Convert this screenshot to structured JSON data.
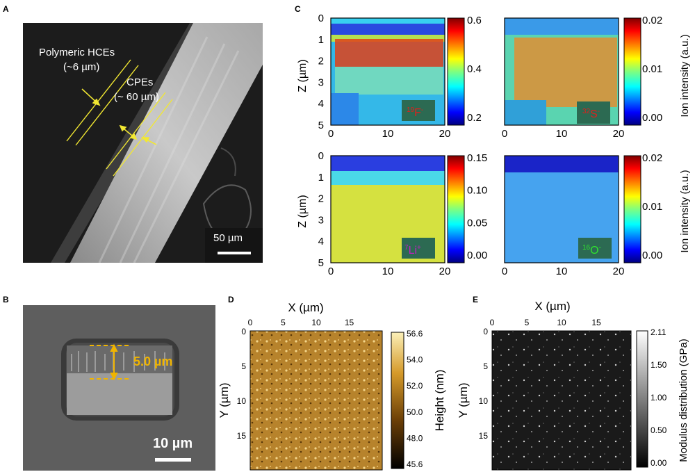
{
  "panels": {
    "a": {
      "label": "A",
      "hce_label_1": "Polymeric HCEs",
      "hce_label_2": "(~6 µm)",
      "cpe_label_1": "CPEs",
      "cpe_label_2": "(~ 60 µm)",
      "scale_bar": "50 µm"
    },
    "b": {
      "label": "B",
      "thickness": "5.0 µm",
      "scale_bar": "10 µm"
    },
    "c": {
      "label": "C",
      "ylabel": "Z (µm)",
      "colorbar_label": "Ion intensity (a.u.)",
      "x_ticks": [
        "0",
        "10",
        "20"
      ],
      "y_ticks": [
        "0",
        "1",
        "2",
        "3",
        "4",
        "5"
      ],
      "maps": [
        {
          "ion_mass": "19",
          "ion": "F",
          "charge": "-",
          "cbar_ticks": [
            "0.6",
            "0.4",
            "0.2"
          ]
        },
        {
          "ion_mass": "32",
          "ion": "S",
          "charge": "-",
          "cbar_ticks": [
            "0.02",
            "0.01",
            "0.00"
          ]
        },
        {
          "ion_mass": "7",
          "ion": "Li",
          "charge": "+",
          "cbar_ticks": [
            "0.15",
            "0.10",
            "0.05",
            "0.00"
          ]
        },
        {
          "ion_mass": "16",
          "ion": "O",
          "charge": "-",
          "cbar_ticks": [
            "0.02",
            "0.01",
            "0.00"
          ]
        }
      ]
    },
    "d": {
      "label": "D",
      "xlabel": "X (µm)",
      "ylabel": "Y (µm)",
      "x_ticks": [
        "0",
        "5",
        "10",
        "15"
      ],
      "y_ticks": [
        "0",
        "5",
        "10",
        "15"
      ],
      "colorbar_label": "Height (nm)",
      "cbar_ticks": [
        "56.6",
        "54.0",
        "52.0",
        "50.0",
        "48.0",
        "45.6"
      ]
    },
    "e": {
      "label": "E",
      "xlabel": "X (µm)",
      "ylabel": "Y (µm)",
      "x_ticks": [
        "0",
        "5",
        "10",
        "15"
      ],
      "y_ticks": [
        "0",
        "5",
        "10",
        "15"
      ],
      "colorbar_label": "Modulus distribution (GPa)",
      "cbar_ticks": [
        "2.11",
        "1.50",
        "1.00",
        "0.50",
        "0.00"
      ]
    }
  },
  "colors": {
    "annotation_yellow": "#f2e832",
    "thickness_orange": "#f0b400",
    "jet_low": "#00007f",
    "jet_high": "#7f0000",
    "afm_dark": "#3a2400",
    "afm_light": "#f6e08a"
  }
}
